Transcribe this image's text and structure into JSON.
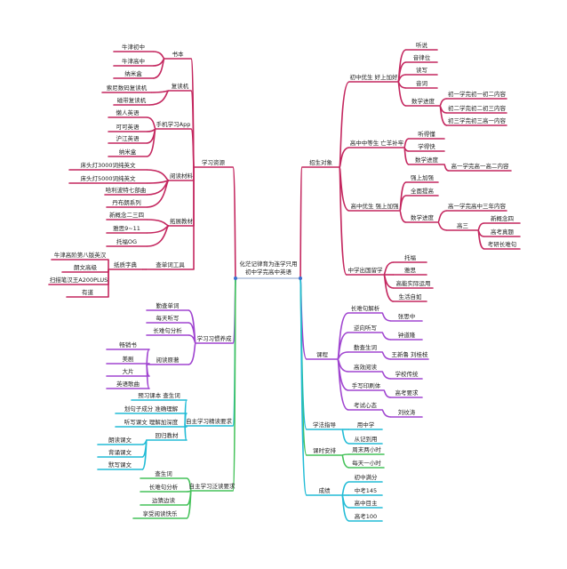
{
  "colors": {
    "pink": "#c4275f",
    "purple": "#a045d0",
    "cyan": "#22bcd6",
    "green": "#45c25a",
    "node_dot": "#3a6fd0"
  },
  "center": {
    "line1": "化茫记律育为连学只用",
    "line2": "初中学完高中英语"
  },
  "nodes": {
    "L1": "学习资源",
    "L1a": "书本",
    "L1a1": "牛津初中",
    "L1a2": "牛津高中",
    "L1a3": "纳米盒",
    "L1b": "复读机",
    "L1b1": "索尼数码复读机",
    "L1b2": "磁带复读机",
    "L1c": "手机学习App",
    "L1c1": "懒人英语",
    "L1c2": "可可英语",
    "L1c3": "沪江英语",
    "L1c4": "纳米盒",
    "L1d": "阅读材料",
    "L1d1": "床头灯3000词纯英文",
    "L1d2": "床头灯5000词纯英文",
    "L1d3": "哈利波特七部曲",
    "L1d4": "丹布朗系列",
    "L1e": "拓展教材",
    "L1e1": "新概念二三四",
    "L1e2": "雅思9~11",
    "L1e3": "托福OG",
    "L1f": "查单词工具",
    "L1f1": "纸质字典",
    "L1f1a": "牛津高阶第八版英汉",
    "L1f1b": "朗文高级",
    "L1f1c": "扫描笔汉王A200PLUS",
    "L1f1d": "有道",
    "L2": "学习习惯养成",
    "L2a": "勤查单词",
    "L2b": "每天听写",
    "L2c": "长难句分析",
    "L2d": "阅读原著",
    "L2d1": "畅销书",
    "L2d2": "美剧",
    "L2d3": "大片",
    "L2d4": "英语歌曲",
    "L3": "自主学习精读要求",
    "L3a": "预习课本 查生词",
    "L3b": "划句子成分 准确理解",
    "L3c": "听写课文 理解加深度",
    "L3d": "回归教材",
    "L3d1": "朗读课文",
    "L3d2": "背诵课文",
    "L3d3": "默写课文",
    "L4": "自主学习泛读要求",
    "L4a": "查生词",
    "L4b": "长难句分析",
    "L4c": "边猜边读",
    "L4d": "享受阅读快乐",
    "R1": "招生对象",
    "R1a": "初中优生 好上加好",
    "R1a1": "听说",
    "R1a2": "音律位",
    "R1a3": "读写",
    "R1a4": "音词",
    "R1a5": "数学进度",
    "R1a5a": "初一学完初一初二内容",
    "R1a5b": "初二学完初二初三内容",
    "R1a5c": "初三学完初三高一内容",
    "R1b": "高中中等生 亡羊补牢",
    "R1b1": "听得懂",
    "R1b2": "学得快",
    "R1b3": "数学进度",
    "R1b3a": "高一学完高一高二内容",
    "R1c": "高中优生 强上加强",
    "R1c1": "强上加强",
    "R1c2": "全面提高",
    "R1c3": "数学进度",
    "R1c3a": "高一学完高中三年内容",
    "R1c3b": "高三",
    "R1c3b1": "新概念四",
    "R1c3b2": "高考真题",
    "R1c3b3": "考研长难句",
    "R1d": "中学出国留学",
    "R1d1": "托福",
    "R1d2": "雅思",
    "R1d3": "高能实际运用",
    "R1d4": "生活自如",
    "R2": "课程",
    "R2a": "长难句解析",
    "R2a1": "张思中",
    "R2b": "逆向听写",
    "R2b1": "钟道隆",
    "R2c": "勤查生词",
    "R2c1": "王新鲁 刘桂枝",
    "R2d": "高效阅读",
    "R2d1": "学校传统",
    "R2e": "手写印刷体",
    "R2e1": "高考要求",
    "R2f": "考试心态",
    "R2f1": "刘纹涛",
    "R3": "学法指导",
    "R3a": "用中学",
    "R3b": "从记到用",
    "R4": "课时安排",
    "R4a": "周末两小时",
    "R4b": "每天一小时",
    "R5": "成绩",
    "R5a": "初中满分",
    "R5b": "中考145",
    "R5c": "高中目主",
    "R5d": "高考100"
  }
}
